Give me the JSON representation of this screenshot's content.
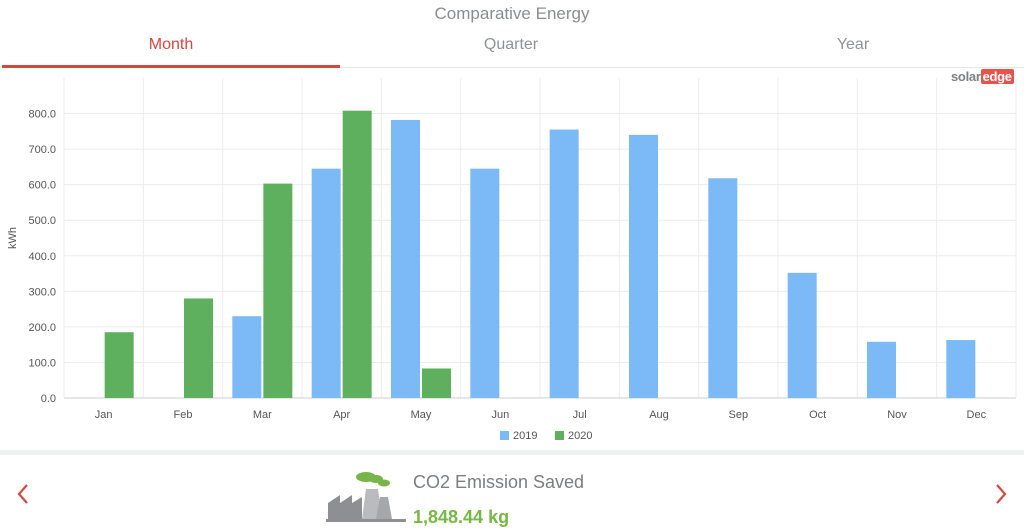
{
  "header": {
    "title": "Comparative Energy"
  },
  "tabs": [
    {
      "label": "Month",
      "active": true
    },
    {
      "label": "Quarter",
      "active": false
    },
    {
      "label": "Year",
      "active": false
    }
  ],
  "logo": {
    "solar": "solar",
    "edge": "edge"
  },
  "chart_data": {
    "type": "bar",
    "ylabel": "kWh",
    "xlabel": "",
    "ylim": [
      0,
      900
    ],
    "yticks": [
      "0.0",
      "100.0",
      "200.0",
      "300.0",
      "400.0",
      "500.0",
      "600.0",
      "700.0",
      "800.0"
    ],
    "grid": true,
    "legend_position": "bottom-center",
    "categories": [
      "Jan",
      "Feb",
      "Mar",
      "Apr",
      "May",
      "Jun",
      "Jul",
      "Aug",
      "Sep",
      "Oct",
      "Nov",
      "Dec"
    ],
    "series": [
      {
        "name": "2019",
        "color": "#7cb9f7",
        "values": [
          null,
          null,
          230,
          645,
          782,
          645,
          755,
          740,
          618,
          352,
          158,
          163
        ]
      },
      {
        "name": "2020",
        "color": "#5fb05e",
        "values": [
          185,
          280,
          603,
          808,
          83,
          null,
          null,
          null,
          null,
          null,
          null,
          null
        ]
      }
    ]
  },
  "co2": {
    "title": "CO2 Emission Saved",
    "value": "1,848.44 kg",
    "prev_icon": "chevron-left-icon",
    "next_icon": "chevron-right-icon",
    "factory_icon": "factory-icon"
  }
}
